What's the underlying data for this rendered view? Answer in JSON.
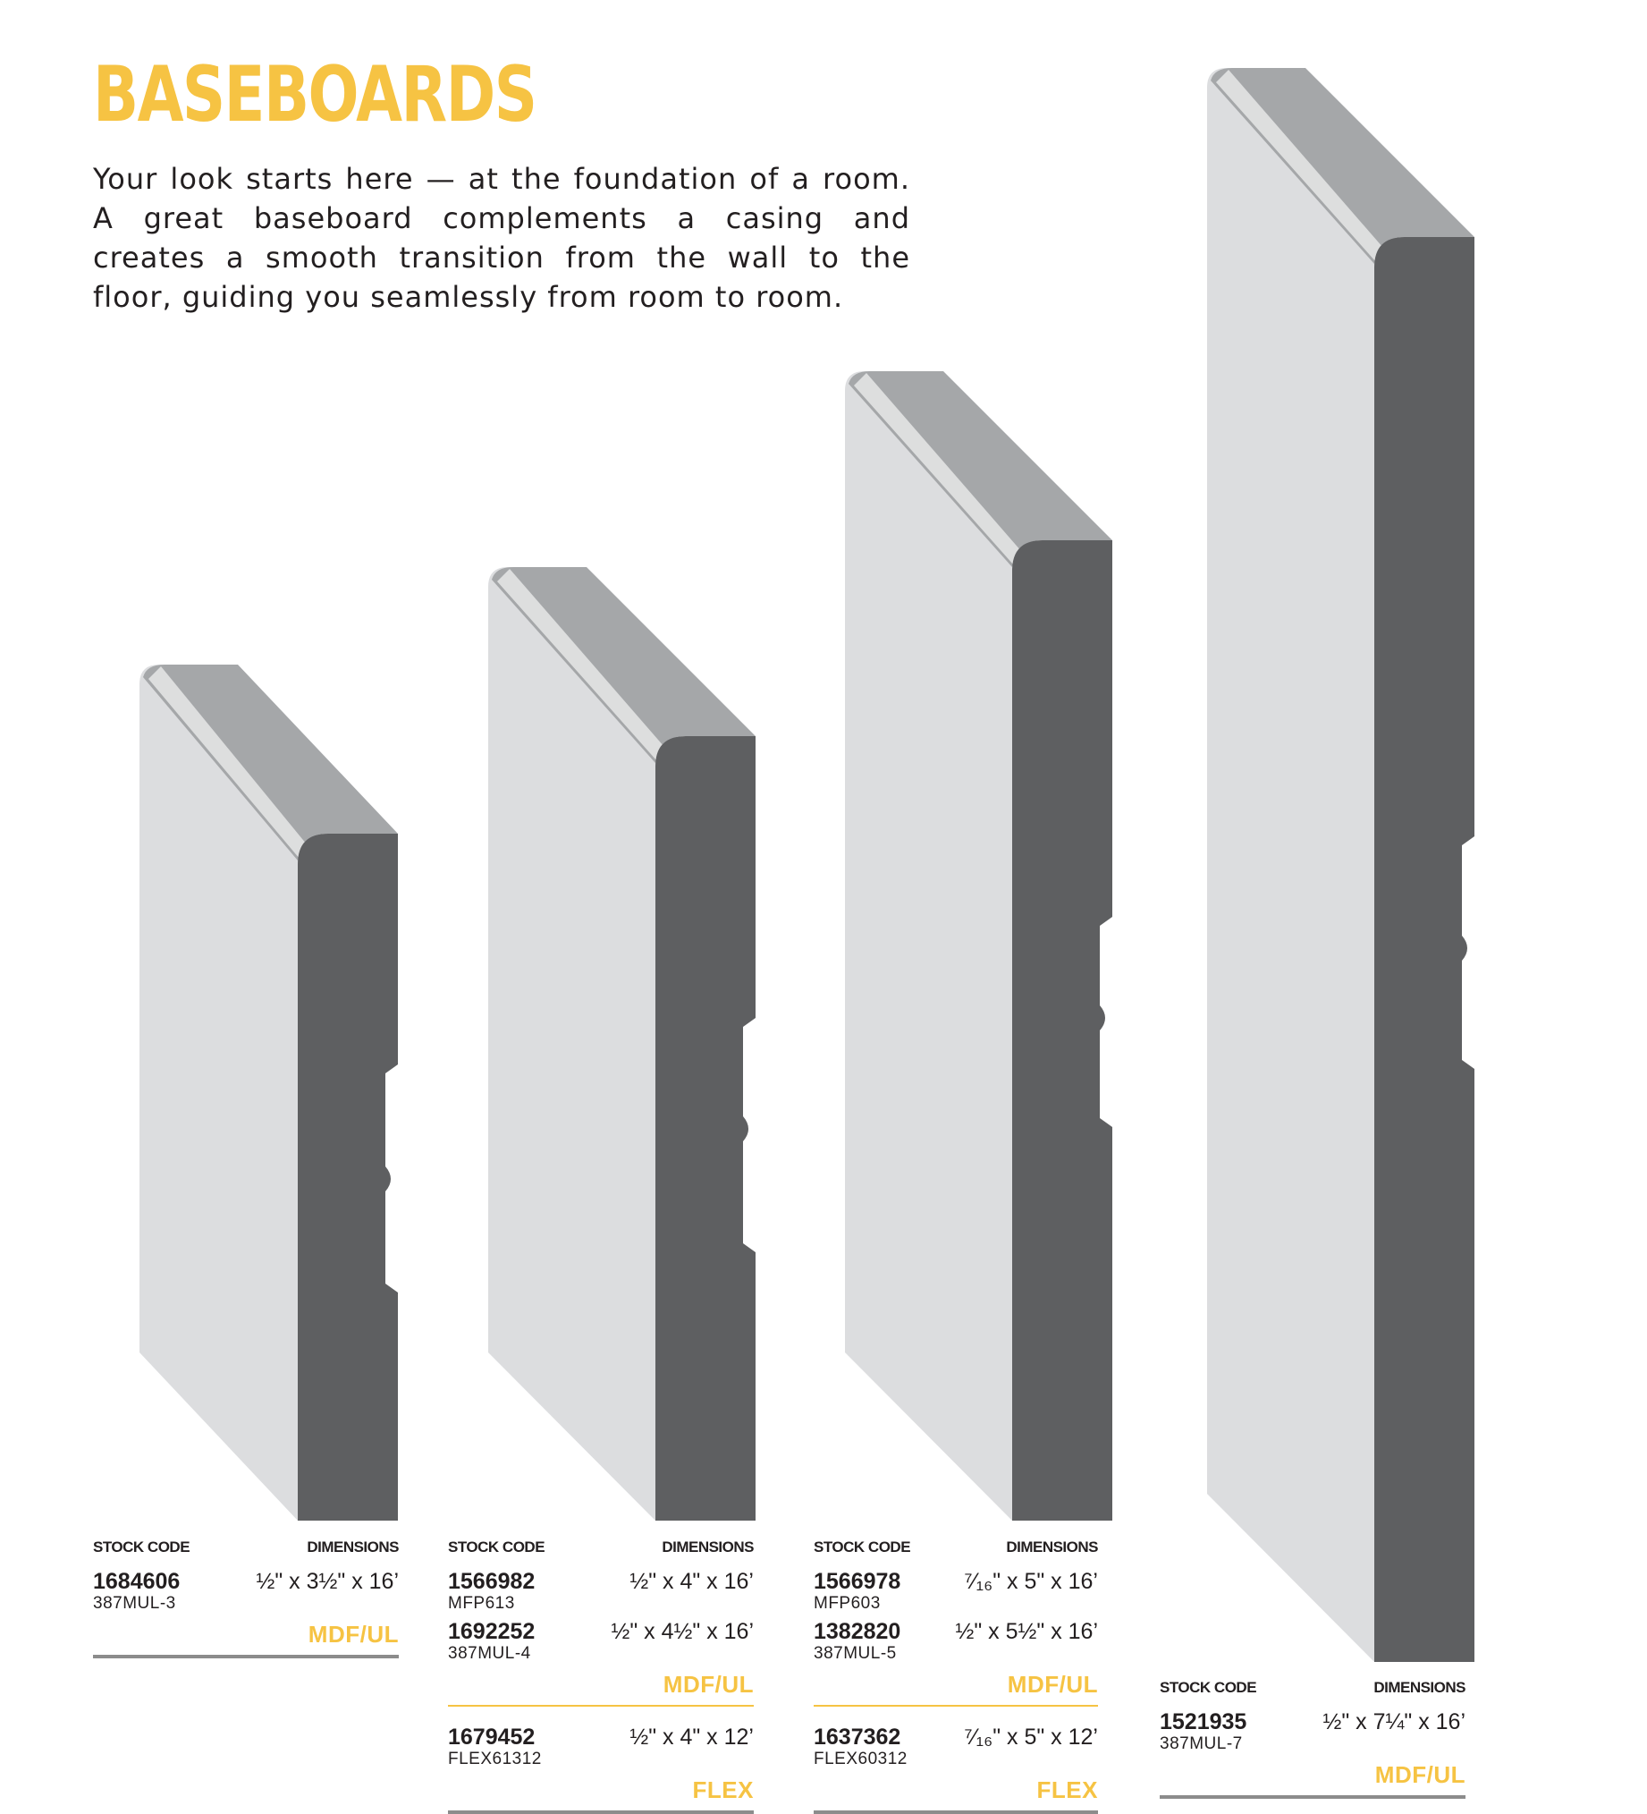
{
  "title": "BASEBOARDS",
  "intro": "Your look starts here — at the foundation of a room. A great baseboard complements a casing and creates a smooth transition from the wall to the floor, guiding you seamlessly from room to room.",
  "colors": {
    "accent": "#f6c343",
    "face": "#dcdddf",
    "top_edge": "#a5a7a9",
    "profile": "#5e5f61",
    "rule": "#8c8c8c"
  },
  "labels": {
    "stock_code": "STOCK CODE",
    "dimensions": "DIMENSIONS"
  },
  "columns": [
    {
      "groups": [
        {
          "items": [
            {
              "code": "1684606",
              "sku": "387MUL-3",
              "dim": "½\" x 3½\" x 16’"
            }
          ],
          "material": "MDF/UL"
        }
      ]
    },
    {
      "groups": [
        {
          "items": [
            {
              "code": "1566982",
              "sku": "MFP613",
              "dim": "½\" x 4\" x 16’"
            },
            {
              "code": "1692252",
              "sku": "387MUL-4",
              "dim": "½\" x 4½\" x 16’"
            }
          ],
          "material": "MDF/UL"
        },
        {
          "items": [
            {
              "code": "1679452",
              "sku": "FLEX61312",
              "dim": "½\" x 4\" x 12’"
            }
          ],
          "material": "FLEX"
        }
      ]
    },
    {
      "groups": [
        {
          "items": [
            {
              "code": "1566978",
              "sku": "MFP603",
              "dim": "⁷⁄₁₆\" x 5\" x 16’"
            },
            {
              "code": "1382820",
              "sku": "387MUL-5",
              "dim": "½\" x 5½\" x 16’"
            }
          ],
          "material": "MDF/UL"
        },
        {
          "items": [
            {
              "code": "1637362",
              "sku": "FLEX60312",
              "dim": "⁷⁄₁₆\" x 5\" x 12’"
            }
          ],
          "material": "FLEX"
        }
      ]
    },
    {
      "groups": [
        {
          "items": [
            {
              "code": "1521935",
              "sku": "387MUL-7",
              "dim": "½\" x 7¼\" x 16’"
            }
          ],
          "material": "MDF/UL"
        }
      ]
    }
  ]
}
